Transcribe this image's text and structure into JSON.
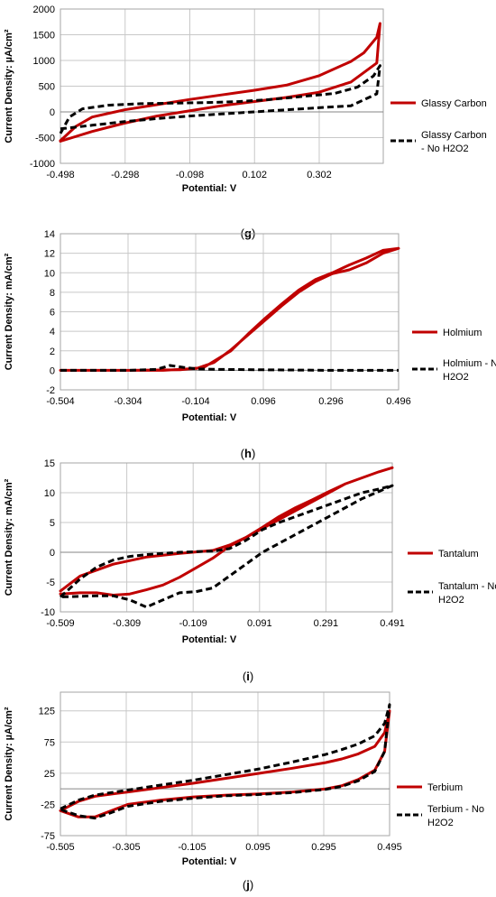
{
  "chart_data": [
    {
      "type": "line",
      "panel_label": "(g)",
      "ylabel": "Current Density: µA/cm²",
      "xlabel": "Potential: V",
      "xlim": [
        -0.498,
        0.5
      ],
      "ylim": [
        -1000,
        2000
      ],
      "x_ticks": [
        "-0.498",
        "-0.298",
        "-0.098",
        "0.102",
        "0.302"
      ],
      "x_tick_values": [
        -0.498,
        -0.298,
        -0.098,
        0.102,
        0.302
      ],
      "y_ticks": [
        "-1000",
        "-500",
        "0",
        "500",
        "1000",
        "1500",
        "2000"
      ],
      "y_tick_values": [
        -1000,
        -500,
        0,
        500,
        1000,
        1500,
        2000
      ],
      "grid": true,
      "legend_position": "right",
      "series": [
        {
          "name": "Glassy Carbon",
          "color": "#c00000",
          "style": "solid",
          "x": [
            -0.498,
            -0.4,
            -0.3,
            -0.2,
            -0.1,
            0.0,
            0.1,
            0.2,
            0.3,
            0.4,
            0.48,
            0.49,
            0.48,
            0.44,
            0.4,
            0.3,
            0.2,
            0.1,
            0.0,
            -0.1,
            -0.2,
            -0.3,
            -0.4,
            -0.45,
            -0.498
          ],
          "y": [
            -570,
            -380,
            -220,
            -80,
            20,
            120,
            200,
            280,
            380,
            580,
            950,
            1720,
            1450,
            1150,
            980,
            700,
            520,
            420,
            330,
            240,
            140,
            40,
            -100,
            -280,
            -560
          ]
        },
        {
          "name": "Glassy Carbon - No H2O2",
          "color": "#000000",
          "style": "dashed",
          "x": [
            -0.498,
            -0.47,
            -0.43,
            -0.35,
            -0.25,
            -0.15,
            -0.05,
            0.05,
            0.15,
            0.25,
            0.35,
            0.42,
            0.47,
            0.49,
            0.48,
            0.4,
            0.3,
            0.2,
            0.1,
            0.0,
            -0.1,
            -0.2,
            -0.3,
            -0.4,
            -0.498
          ],
          "y": [
            -420,
            -100,
            60,
            130,
            160,
            170,
            180,
            200,
            240,
            300,
            360,
            480,
            700,
            900,
            350,
            120,
            80,
            40,
            0,
            -40,
            -80,
            -130,
            -190,
            -260,
            -330
          ]
        }
      ]
    },
    {
      "type": "line",
      "panel_label": "(h)",
      "ylabel": "Current Density: mA/cm²",
      "xlabel": "Potential: V",
      "xlim": [
        -0.504,
        0.496
      ],
      "ylim": [
        -2,
        14
      ],
      "x_ticks": [
        "-0.504",
        "-0.304",
        "-0.104",
        "0.096",
        "0.296",
        "0.496"
      ],
      "x_tick_values": [
        -0.504,
        -0.304,
        -0.104,
        0.096,
        0.296,
        0.496
      ],
      "y_ticks": [
        "-2",
        "0",
        "2",
        "4",
        "6",
        "8",
        "10",
        "12",
        "14"
      ],
      "y_tick_values": [
        -2,
        0,
        2,
        4,
        6,
        8,
        10,
        12,
        14
      ],
      "grid": true,
      "legend_position": "right",
      "series": [
        {
          "name": "Holmium",
          "color": "#c00000",
          "style": "solid",
          "x": [
            -0.504,
            -0.3,
            -0.15,
            -0.08,
            0.0,
            0.05,
            0.1,
            0.15,
            0.2,
            0.25,
            0.3,
            0.35,
            0.4,
            0.45,
            0.496,
            0.45,
            0.4,
            0.35,
            0.3,
            0.25,
            0.2,
            0.15,
            0.1,
            0.05,
            0.0,
            -0.05,
            -0.1,
            -0.2,
            -0.504
          ],
          "y": [
            0.0,
            0.0,
            0.05,
            0.3,
            2.0,
            3.7,
            5.3,
            6.8,
            8.2,
            9.3,
            10.0,
            10.8,
            11.5,
            12.3,
            12.5,
            12.0,
            11.0,
            10.3,
            9.9,
            9.1,
            8.0,
            6.6,
            5.1,
            3.6,
            2.1,
            0.8,
            0.2,
            0.0,
            0.0
          ]
        },
        {
          "name": "Holmium - No H2O2",
          "color": "#000000",
          "style": "dashed",
          "x": [
            -0.504,
            -0.3,
            -0.22,
            -0.18,
            -0.14,
            -0.1,
            -0.05,
            0.1,
            0.3,
            0.496
          ],
          "y": [
            0.0,
            0.0,
            0.1,
            0.5,
            0.3,
            0.15,
            0.1,
            0.05,
            0.0,
            0.0
          ]
        }
      ]
    },
    {
      "type": "line",
      "panel_label": "(i)",
      "ylabel": "Current Density: mA/cm²",
      "xlabel": "Potential: V",
      "xlim": [
        -0.509,
        0.491
      ],
      "ylim": [
        -10,
        15
      ],
      "x_ticks": [
        "-0.509",
        "-0.309",
        "-0.109",
        "0.091",
        "0.291",
        "0.491"
      ],
      "x_tick_values": [
        -0.509,
        -0.309,
        -0.109,
        0.091,
        0.291,
        0.491
      ],
      "y_ticks": [
        "-10",
        "-5",
        "0",
        "5",
        "10",
        "15"
      ],
      "y_tick_values": [
        -10,
        -5,
        0,
        5,
        10,
        15
      ],
      "grid": true,
      "legend_position": "right",
      "series": [
        {
          "name": "Tantalum",
          "color": "#c00000",
          "style": "solid",
          "x": [
            -0.509,
            -0.45,
            -0.35,
            -0.25,
            -0.15,
            -0.05,
            0.0,
            0.05,
            0.1,
            0.15,
            0.2,
            0.25,
            0.3,
            0.35,
            0.4,
            0.45,
            0.491,
            0.45,
            0.4,
            0.35,
            0.3,
            0.25,
            0.2,
            0.15,
            0.1,
            0.05,
            0.0,
            -0.05,
            -0.1,
            -0.15,
            -0.2,
            -0.25,
            -0.3,
            -0.35,
            -0.4,
            -0.45,
            -0.509
          ],
          "y": [
            -6.5,
            -4.0,
            -2.0,
            -0.8,
            -0.2,
            0.3,
            1.2,
            2.5,
            4.2,
            6.0,
            7.5,
            8.8,
            10.2,
            11.5,
            12.5,
            13.5,
            14.2,
            13.5,
            12.5,
            11.5,
            10.0,
            8.5,
            7.0,
            5.5,
            4.0,
            2.5,
            1.0,
            -1.0,
            -2.6,
            -4.2,
            -5.5,
            -6.3,
            -7.0,
            -7.2,
            -6.8,
            -6.8,
            -7.0
          ]
        },
        {
          "name": "Tantalum - No H2O2",
          "color": "#000000",
          "style": "dashed",
          "x": [
            -0.509,
            -0.45,
            -0.4,
            -0.35,
            -0.3,
            -0.25,
            -0.2,
            -0.15,
            -0.1,
            -0.05,
            0.0,
            0.05,
            0.1,
            0.15,
            0.2,
            0.25,
            0.3,
            0.35,
            0.4,
            0.45,
            0.491,
            0.45,
            0.4,
            0.35,
            0.3,
            0.25,
            0.2,
            0.15,
            0.1,
            0.05,
            0.0,
            -0.05,
            -0.1,
            -0.15,
            -0.2,
            -0.25,
            -0.3,
            -0.35,
            -0.4,
            -0.45,
            -0.509
          ],
          "y": [
            -7.5,
            -4.5,
            -2.5,
            -1.3,
            -0.7,
            -0.4,
            -0.2,
            0.0,
            0.1,
            0.2,
            0.6,
            2.0,
            3.8,
            5.0,
            6.0,
            7.0,
            8.0,
            9.0,
            10.0,
            10.6,
            11.2,
            10.2,
            9.0,
            7.5,
            6.0,
            4.5,
            3.0,
            1.5,
            0.0,
            -2.0,
            -4.0,
            -6.0,
            -6.6,
            -6.8,
            -8.0,
            -9.2,
            -8.0,
            -7.3,
            -7.3,
            -7.4,
            -7.5
          ]
        }
      ]
    },
    {
      "type": "line",
      "panel_label": "(j)",
      "ylabel": "Current Density: µA/cm²",
      "xlabel": "Potential: V",
      "xlim": [
        -0.505,
        0.495
      ],
      "ylim": [
        -75,
        155
      ],
      "x_ticks": [
        "-0.505",
        "-0.305",
        "-0.105",
        "0.095",
        "0.295",
        "0.495"
      ],
      "x_tick_values": [
        -0.505,
        -0.305,
        -0.105,
        0.095,
        0.295,
        0.495
      ],
      "y_ticks": [
        "-75",
        "-25",
        "25",
        "75",
        "125"
      ],
      "y_tick_values": [
        -75,
        -25,
        25,
        75,
        125
      ],
      "grid": true,
      "legend_position": "right",
      "series": [
        {
          "name": "Terbium",
          "color": "#c00000",
          "style": "solid",
          "x": [
            -0.505,
            -0.45,
            -0.4,
            -0.3,
            -0.2,
            -0.1,
            0.0,
            0.1,
            0.2,
            0.3,
            0.35,
            0.4,
            0.45,
            0.48,
            0.495,
            0.48,
            0.45,
            0.4,
            0.35,
            0.3,
            0.2,
            0.1,
            0.0,
            -0.1,
            -0.2,
            -0.3,
            -0.35,
            -0.4,
            -0.45,
            -0.505
          ],
          "y": [
            -35,
            -20,
            -12,
            -5,
            2,
            9,
            17,
            25,
            33,
            42,
            48,
            56,
            68,
            90,
            125,
            60,
            30,
            15,
            5,
            0,
            -5,
            -8,
            -10,
            -13,
            -18,
            -25,
            -35,
            -45,
            -45,
            -35
          ]
        },
        {
          "name": "Terbium - No H2O2",
          "color": "#000000",
          "style": "dashed",
          "x": [
            -0.505,
            -0.45,
            -0.4,
            -0.3,
            -0.2,
            -0.1,
            0.0,
            0.1,
            0.2,
            0.3,
            0.35,
            0.4,
            0.45,
            0.48,
            0.495,
            0.48,
            0.45,
            0.4,
            0.35,
            0.3,
            0.2,
            0.1,
            0.0,
            -0.1,
            -0.2,
            -0.3,
            -0.35,
            -0.4,
            -0.45,
            -0.505
          ],
          "y": [
            -32,
            -18,
            -10,
            -2,
            6,
            14,
            23,
            32,
            43,
            55,
            63,
            72,
            85,
            105,
            135,
            60,
            28,
            13,
            4,
            -1,
            -6,
            -9,
            -11,
            -15,
            -20,
            -28,
            -38,
            -47,
            -43,
            -33
          ]
        }
      ]
    }
  ]
}
